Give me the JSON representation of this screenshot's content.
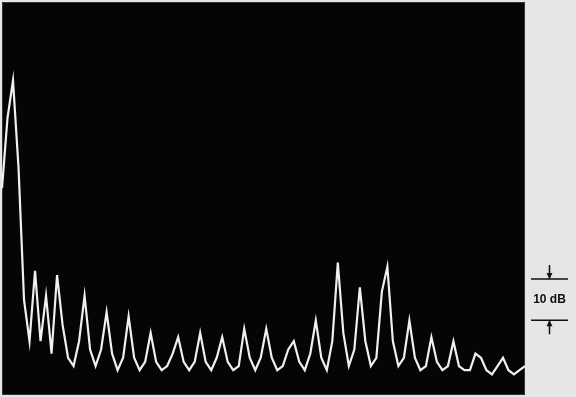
{
  "chart_data": {
    "type": "line",
    "color": "#f0f0f0",
    "ylim": [
      -95,
      0
    ],
    "grid": false,
    "tick_labels": false,
    "annotations": [
      {
        "text": "10 dB",
        "span": 10
      }
    ],
    "categories": [
      null,
      null,
      null,
      null,
      null,
      null,
      null,
      null,
      null,
      null,
      null,
      null,
      null,
      null,
      null,
      null,
      null,
      null,
      null,
      null,
      null,
      null,
      null,
      null,
      null,
      null,
      null,
      null,
      null,
      null,
      null,
      null,
      null,
      null,
      null,
      null,
      null,
      null,
      null,
      null,
      null,
      null,
      null,
      null,
      null,
      null,
      null,
      null,
      null,
      null,
      null,
      null,
      null,
      null,
      null,
      null,
      null,
      null,
      null,
      null,
      null,
      null,
      null,
      null,
      null,
      null,
      null,
      null,
      null,
      null,
      null,
      null,
      null,
      null,
      null,
      null,
      null,
      null,
      null,
      null,
      null,
      null,
      null,
      null,
      null,
      null,
      null,
      null,
      null,
      null,
      null,
      null,
      null,
      null,
      null,
      null
    ],
    "values": [
      -45,
      -28,
      -19,
      -40,
      -72,
      -82,
      -65,
      -82,
      -71,
      -85,
      -66,
      -78,
      -86,
      -88,
      -82,
      -71,
      -84,
      -88,
      -84,
      -75,
      -85,
      -89,
      -86,
      -76,
      -86,
      -89,
      -87,
      -80,
      -87,
      -89,
      -88,
      -85,
      -81,
      -87,
      -89,
      -87,
      -80,
      -87,
      -89,
      -86,
      -81,
      -87,
      -89,
      -88,
      -79,
      -86,
      -89,
      -86,
      -79,
      -86,
      -89,
      -88,
      -84,
      -82,
      -87,
      -89,
      -85,
      -77,
      -86,
      -89,
      -82,
      -63,
      -80,
      -88,
      -84,
      -69,
      -82,
      -88,
      -86,
      -70,
      -64,
      -82,
      -88,
      -86,
      -77,
      -86,
      -89,
      -88,
      -81,
      -87,
      -89,
      -88,
      -82,
      -88,
      -89,
      -89,
      -85,
      -86,
      -89,
      -90,
      -88,
      -86,
      -89,
      -90,
      -89,
      -88
    ]
  }
}
